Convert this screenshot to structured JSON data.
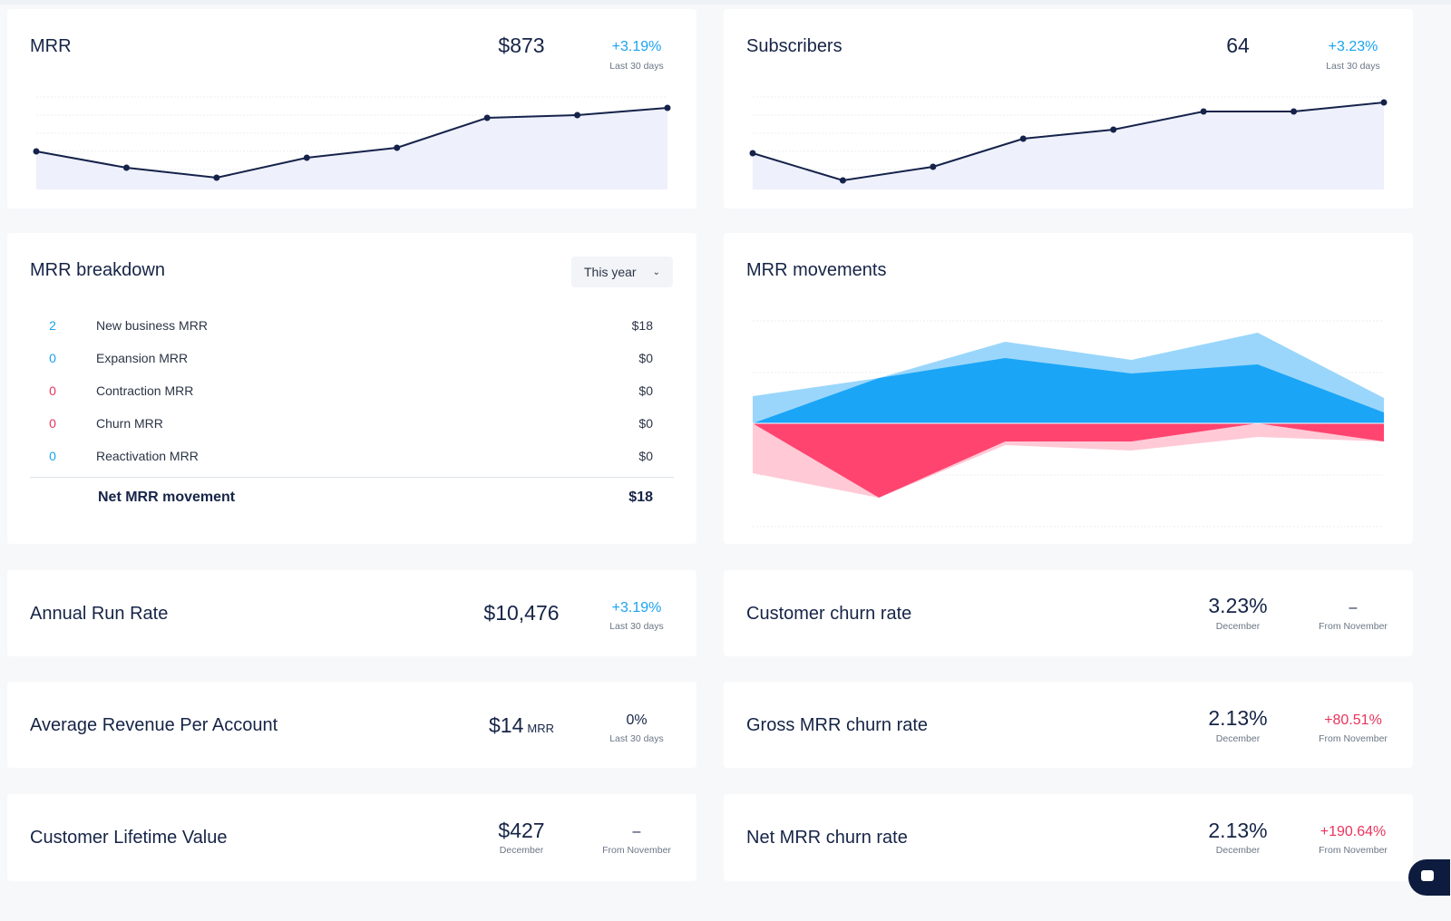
{
  "mrr": {
    "title": "MRR",
    "value": "$873",
    "change": "+3.19%",
    "period": "Last 30 days",
    "trend": [
      0.42,
      0.24,
      0.13,
      0.35,
      0.46,
      0.79,
      0.82,
      0.9
    ]
  },
  "subscribers": {
    "title": "Subscribers",
    "value": "64",
    "change": "+3.23%",
    "period": "Last 30 days",
    "trend": [
      0.4,
      0.1,
      0.25,
      0.56,
      0.66,
      0.86,
      0.86,
      0.96
    ]
  },
  "breakdown": {
    "title": "MRR breakdown",
    "period_select": "This year",
    "rows": [
      {
        "count": "2",
        "label": "New business MRR",
        "amount": "$18",
        "kind": "pos"
      },
      {
        "count": "0",
        "label": "Expansion MRR",
        "amount": "$0",
        "kind": "pos"
      },
      {
        "count": "0",
        "label": "Contraction MRR",
        "amount": "$0",
        "kind": "neg"
      },
      {
        "count": "0",
        "label": "Churn MRR",
        "amount": "$0",
        "kind": "neg"
      },
      {
        "count": "0",
        "label": "Reactivation MRR",
        "amount": "$0",
        "kind": "pos"
      }
    ],
    "net_label": "Net MRR movement",
    "net_amount": "$18"
  },
  "movements": {
    "title": "MRR movements",
    "colors": {
      "new": "#1ba5f7",
      "expansion": "#9ad6fb",
      "churn": "#ff4470",
      "contraction": "#ffc9d6"
    },
    "chart_data": {
      "type": "area",
      "series": [
        {
          "values": [
            0,
            0.5,
            0.72,
            0.55,
            0.65,
            0.12
          ]
        },
        {
          "values": [
            0.3,
            0.5,
            0.9,
            0.7,
            1.0,
            0.28
          ]
        },
        {
          "values": [
            0,
            -0.82,
            -0.2,
            -0.2,
            0,
            -0.2
          ]
        },
        {
          "values": [
            -0.55,
            -0.82,
            -0.24,
            -0.3,
            -0.15,
            -0.2
          ]
        }
      ]
    }
  },
  "arr": {
    "title": "Annual Run Rate",
    "value": "$10,476",
    "change": "+3.19%",
    "period": "Last 30 days"
  },
  "arpa": {
    "title": "Average Revenue Per Account",
    "value": "$14",
    "unit": "MRR",
    "change": "0%",
    "period": "Last 30 days"
  },
  "ltv": {
    "title": "Customer Lifetime Value",
    "value": "$427",
    "value_period": "December",
    "change": "–",
    "period": "From November"
  },
  "customer_churn": {
    "title": "Customer churn rate",
    "value": "3.23%",
    "value_period": "December",
    "change": "–",
    "period": "From November"
  },
  "gross_churn": {
    "title": "Gross MRR churn rate",
    "value": "2.13%",
    "value_period": "December",
    "change": "+80.51%",
    "period": "From November"
  },
  "net_churn": {
    "title": "Net MRR churn rate",
    "value": "2.13%",
    "value_period": "December",
    "change": "+190.64%",
    "period": "From November"
  }
}
